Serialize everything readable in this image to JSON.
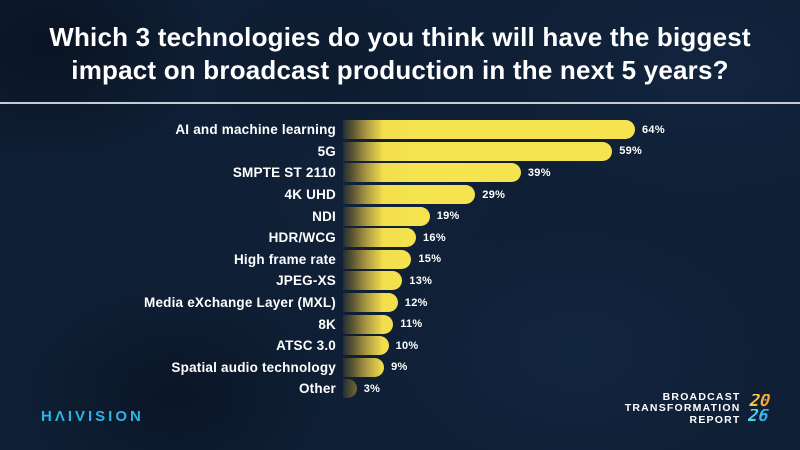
{
  "title": {
    "line1": "Which 3 technologies do you think will have the biggest",
    "line2": "impact on broadcast production in the next 5 years?"
  },
  "chart_data": {
    "type": "bar",
    "orientation": "horizontal",
    "title": "Which 3 technologies do you think will have the biggest impact on broadcast production in the next 5 years?",
    "categories": [
      "AI and machine learning",
      "5G",
      "SMPTE ST 2110",
      "4K UHD",
      "NDI",
      "HDR/WCG",
      "High frame rate",
      "JPEG-XS",
      "Media eXchange Layer (MXL)",
      "8K",
      "ATSC 3.0",
      "Spatial audio technology",
      "Other"
    ],
    "values": [
      64,
      59,
      39,
      29,
      19,
      16,
      15,
      13,
      12,
      11,
      10,
      9,
      3
    ],
    "value_suffix": "%",
    "xlim": [
      0,
      64
    ],
    "grid": false,
    "legend": false,
    "bar_gradient": [
      "#242d36",
      "#a39343",
      "#f6e350"
    ]
  },
  "footer": {
    "logo_text": "HΛIVISION",
    "logo_color": "#2ab5e5",
    "report_line1": "BROADCAST",
    "report_line2": "TRANSFORMATION",
    "report_line3": "REPORT",
    "year_top": "20",
    "year_bottom": "26"
  },
  "colors": {
    "background": "#0f1f35",
    "divider": "#c7ccd4",
    "bar_yellow": "#f6e350",
    "title_text": "#ffffff"
  }
}
